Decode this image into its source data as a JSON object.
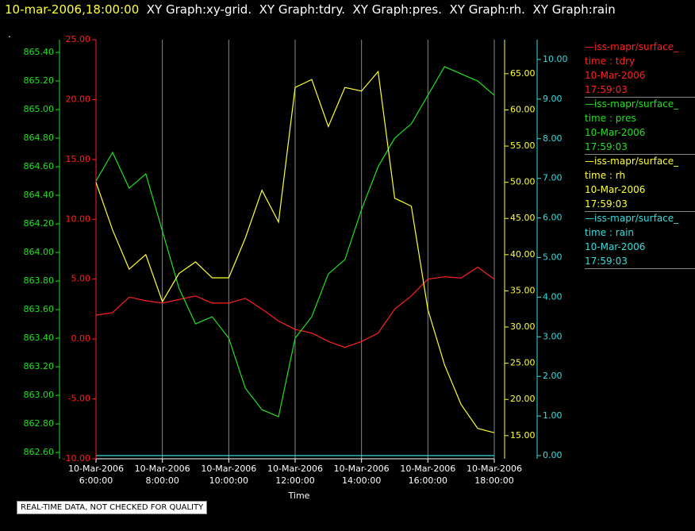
{
  "chart_data": {
    "type": "line",
    "title_time": "10-mar-2006,18:00:00",
    "title": "XY Graph:xy-grid.  XY Graph:tdry.  XY Graph:pres.  XY Graph:rh.  XY Graph:rain",
    "subtitle": ".",
    "x_label": "Time",
    "note": "REAL-TIME DATA, NOT CHECKED FOR QUALITY",
    "xlim": [
      6,
      18
    ],
    "xticks": [
      {
        "value": 6,
        "label": "10-Mar-2006\n6:00:00"
      },
      {
        "value": 8,
        "label": "10-Mar-2006\n8:00:00"
      },
      {
        "value": 10,
        "label": "10-Mar-2006\n10:00:00"
      },
      {
        "value": 12,
        "label": "10-Mar-2006\n12:00:00"
      },
      {
        "value": 14,
        "label": "10-Mar-2006\n14:00:00"
      },
      {
        "value": 16,
        "label": "10-Mar-2006\n16:00:00"
      },
      {
        "value": 18,
        "label": "10-Mar-2006\n18:00:00"
      }
    ],
    "grid": true,
    "x": [
      6,
      6.5,
      7,
      7.5,
      8,
      8.5,
      9,
      9.5,
      10,
      10.5,
      11,
      11.5,
      12,
      12.5,
      13,
      13.5,
      14,
      14.5,
      15,
      15.5,
      16,
      16.5,
      17,
      17.5,
      18
    ],
    "series": [
      {
        "name": "iss-mapr/surface_",
        "label": "time : tdry",
        "date": "10-Mar-2006",
        "time": "17:59:03",
        "color": "#ff2020",
        "ylim": [
          -10,
          25
        ],
        "yticks": [
          {
            "value": -10,
            "label": "-10.00"
          },
          {
            "value": -5,
            "label": "-5.00"
          },
          {
            "value": 0,
            "label": "0.00"
          },
          {
            "value": 5,
            "label": "5.00"
          },
          {
            "value": 10,
            "label": "10.00"
          },
          {
            "value": 15,
            "label": "15.00"
          },
          {
            "value": 20,
            "label": "20.00"
          },
          {
            "value": 25,
            "label": "25.00"
          }
        ],
        "values": [
          2.0,
          2.2,
          3.5,
          3.2,
          3.0,
          3.3,
          3.6,
          3.0,
          3.0,
          3.4,
          2.5,
          1.5,
          0.8,
          0.5,
          -0.2,
          -0.7,
          -0.2,
          0.5,
          2.5,
          3.6,
          5.0,
          5.2,
          5.1,
          6.0,
          5.0
        ]
      },
      {
        "name": "iss-mapr/surface_",
        "label": "time : pres",
        "date": "10-Mar-2006",
        "time": "17:59:03",
        "color": "#20e020",
        "ylim": [
          862.556,
          865.489
        ],
        "yticks": [
          {
            "value": 862.6,
            "label": "862.60"
          },
          {
            "value": 862.8,
            "label": "862.80"
          },
          {
            "value": 863.0,
            "label": "863.00"
          },
          {
            "value": 863.2,
            "label": "863.20"
          },
          {
            "value": 863.4,
            "label": "863.40"
          },
          {
            "value": 863.6,
            "label": "863.60"
          },
          {
            "value": 863.8,
            "label": "863.80"
          },
          {
            "value": 864.0,
            "label": "864.00"
          },
          {
            "value": 864.2,
            "label": "864.20"
          },
          {
            "value": 864.4,
            "label": "864.40"
          },
          {
            "value": 864.6,
            "label": "864.60"
          },
          {
            "value": 864.8,
            "label": "864.80"
          },
          {
            "value": 865.0,
            "label": "865.00"
          },
          {
            "value": 865.2,
            "label": "865.20"
          },
          {
            "value": 865.4,
            "label": "865.40"
          }
        ],
        "values": [
          864.5,
          864.7,
          864.45,
          864.55,
          864.15,
          863.75,
          863.5,
          863.55,
          863.4,
          863.05,
          862.9,
          862.85,
          863.4,
          863.55,
          863.85,
          863.95,
          864.3,
          864.6,
          864.8,
          864.9,
          865.1,
          865.3,
          865.25,
          865.2,
          865.1
        ]
      },
      {
        "name": "iss-mapr/surface_",
        "label": "time : rh",
        "date": "10-Mar-2006",
        "time": "17:59:03",
        "color": "#ffff33",
        "ylim": [
          11.8,
          69.7
        ],
        "yticks": [
          {
            "value": 15,
            "label": "15.00"
          },
          {
            "value": 20,
            "label": "20.00"
          },
          {
            "value": 25,
            "label": "25.00"
          },
          {
            "value": 30,
            "label": "30.00"
          },
          {
            "value": 35,
            "label": "35.00"
          },
          {
            "value": 40,
            "label": "40.00"
          },
          {
            "value": 45,
            "label": "45.00"
          },
          {
            "value": 50,
            "label": "50.00"
          },
          {
            "value": 55,
            "label": "55.00"
          },
          {
            "value": 60,
            "label": "60.00"
          },
          {
            "value": 65,
            "label": "65.00"
          }
        ],
        "values": [
          50,
          43.4,
          38,
          40,
          33.5,
          37.4,
          39,
          36.8,
          36.8,
          42.3,
          48.9,
          44.5,
          63.1,
          64.2,
          57.7,
          63.1,
          62.6,
          65.3,
          47.8,
          46.7,
          32.4,
          24.8,
          19.3,
          16,
          15.4
        ]
      },
      {
        "name": "iss-mapr/surface_",
        "label": "time : rain",
        "date": "10-Mar-2006",
        "time": "17:59:03",
        "color": "#33dddd",
        "ylim": [
          -0.08,
          10.5
        ],
        "yticks": [
          {
            "value": 0,
            "label": "0.00"
          },
          {
            "value": 1,
            "label": "1.00"
          },
          {
            "value": 2,
            "label": "2.00"
          },
          {
            "value": 3,
            "label": "3.00"
          },
          {
            "value": 4,
            "label": "4.00"
          },
          {
            "value": 5,
            "label": "5.00"
          },
          {
            "value": 6,
            "label": "6.00"
          },
          {
            "value": 7,
            "label": "7.00"
          },
          {
            "value": 8,
            "label": "8.00"
          },
          {
            "value": 9,
            "label": "9.00"
          },
          {
            "value": 10,
            "label": "10.00"
          }
        ],
        "values": [
          0,
          0,
          0,
          0,
          0,
          0,
          0,
          0,
          0,
          0,
          0,
          0,
          0,
          0,
          0,
          0,
          0,
          0,
          0,
          0,
          0,
          0,
          0,
          0,
          0
        ]
      }
    ]
  }
}
